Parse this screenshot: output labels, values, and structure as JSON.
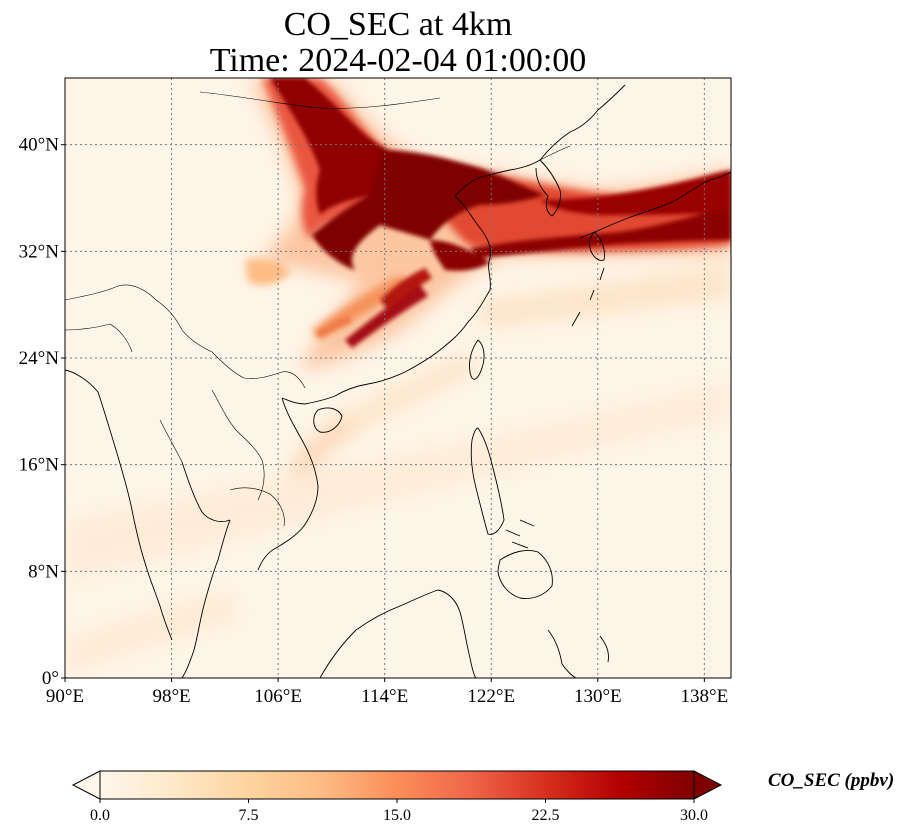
{
  "title": {
    "line1": "CO_SEC at 4km",
    "line2": "Time: 2024-02-04 01:00:00"
  },
  "map": {
    "extent": {
      "lon_min": 90,
      "lon_max": 140,
      "lat_min": 0,
      "lat_max": 45
    },
    "gridlines": true,
    "gridline_style": "dotted",
    "lon_ticks": [
      90,
      98,
      106,
      114,
      122,
      130,
      138
    ],
    "lat_ticks": [
      0,
      8,
      16,
      24,
      32,
      40
    ],
    "lon_tick_labels": [
      "90°E",
      "98°E",
      "106°E",
      "114°E",
      "122°E",
      "130°E",
      "138°E"
    ],
    "lat_tick_labels": [
      "0°",
      "8°N",
      "16°N",
      "24°N",
      "32°N",
      "40°N"
    ],
    "plume_colors": {
      "low": "#fef5e8",
      "mid": "#f3a56b",
      "high": "#c4171b",
      "max": "#7f0000"
    }
  },
  "colorbar": {
    "label": "CO_SEC (ppbv)",
    "min": 0.0,
    "max": 30.0,
    "extend": "both",
    "ticks": [
      "0.0",
      "7.5",
      "15.0",
      "22.5",
      "30.0"
    ],
    "colormap": "OrRd",
    "stops": [
      "#fff7ec",
      "#fee8c8",
      "#fdd49e",
      "#fdbb84",
      "#fc8d59",
      "#ef6548",
      "#d7301f",
      "#b30000",
      "#7f0000"
    ]
  }
}
